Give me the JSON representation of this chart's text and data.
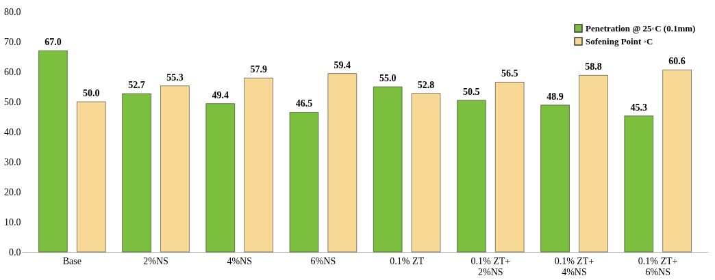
{
  "chart_data": {
    "type": "bar",
    "categories": [
      "Base",
      "2%NS",
      "4%NS",
      "6%NS",
      "0.1% ZT",
      "0.1% ZT+\n2%NS",
      "0.1% ZT+\n4%NS",
      "0.1% ZT+\n6%NS"
    ],
    "series": [
      {
        "name": "Penetration @ 25◦C (0.1mm)",
        "color": "#7cbf3f",
        "values": [
          67.0,
          52.7,
          49.4,
          46.5,
          55.0,
          50.5,
          48.9,
          45.3
        ],
        "value_labels": [
          "67.0",
          "52.7",
          "49.4",
          "46.5",
          "55.0",
          "50.5",
          "48.9",
          "45.3"
        ]
      },
      {
        "name": "Sofening Point ◦C",
        "color": "#f7d894",
        "values": [
          50.0,
          55.3,
          57.9,
          59.4,
          52.8,
          56.5,
          58.8,
          60.6
        ],
        "value_labels": [
          "50.0",
          "55.3",
          "57.9",
          "59.4",
          "52.8",
          "56.5",
          "58.8",
          "60.6"
        ]
      }
    ],
    "ylim": [
      0,
      80
    ],
    "yticks": [
      {
        "value": 0,
        "label": "0.0"
      },
      {
        "value": 10,
        "label": "10.0"
      },
      {
        "value": 20,
        "label": "20.0"
      },
      {
        "value": 30,
        "label": "30.0"
      },
      {
        "value": 40,
        "label": "40.0"
      },
      {
        "value": 50,
        "label": "50.0"
      },
      {
        "value": 60,
        "label": "60.0"
      },
      {
        "value": 70,
        "label": "70.0"
      },
      {
        "value": 80,
        "label": "80.0"
      }
    ],
    "grid": false,
    "legend": "top right"
  }
}
